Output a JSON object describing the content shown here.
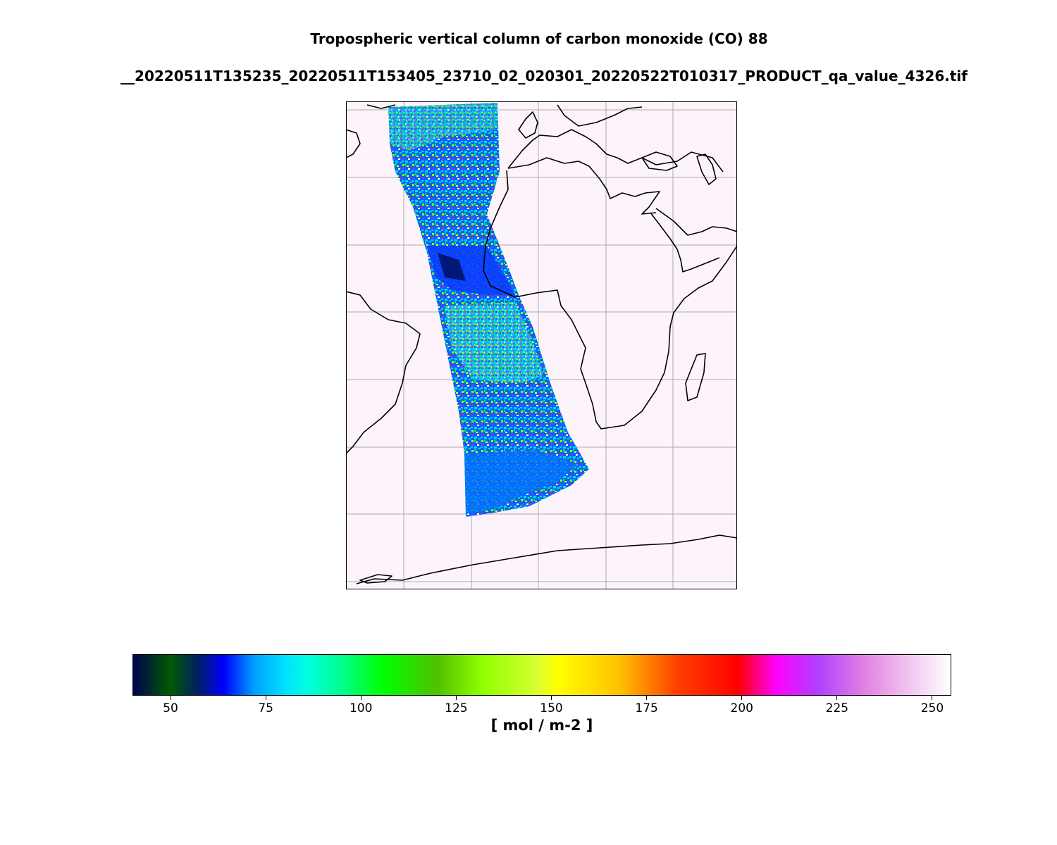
{
  "figure": {
    "title_line_1": "Tropospheric vertical column of carbon monoxide (CO) 88",
    "title_line_2": "__20220511T135235_20220511T153405_23710_02_020301_20220522T010317_PRODUCT_qa_value_4326.tif"
  },
  "map": {
    "background_color": "#fdf4fb",
    "coastline_color": "#000000",
    "gridline_color": "#aaaaaa",
    "swath_colors": [
      "#0050ff",
      "#00c8ff",
      "#00ff80",
      "#90ff00",
      "#ffff00",
      "#ff3000",
      "#ff00ff",
      "#ffffff",
      "#001060"
    ]
  },
  "colorbar": {
    "label": "[ mol / m-2 ]",
    "range": [
      40,
      255
    ],
    "ticks": [
      {
        "value": 50,
        "label": "50"
      },
      {
        "value": 75,
        "label": "75"
      },
      {
        "value": 100,
        "label": "100"
      },
      {
        "value": 125,
        "label": "125"
      },
      {
        "value": 150,
        "label": "150"
      },
      {
        "value": 175,
        "label": "175"
      },
      {
        "value": 200,
        "label": "200"
      },
      {
        "value": 225,
        "label": "225"
      },
      {
        "value": 250,
        "label": "250"
      }
    ],
    "color_stops": [
      {
        "value": 40,
        "color": "#000050"
      },
      {
        "value": 50,
        "color": "#005a00"
      },
      {
        "value": 57,
        "color": "#002060"
      },
      {
        "value": 64,
        "color": "#0000ff"
      },
      {
        "value": 72,
        "color": "#00a0ff"
      },
      {
        "value": 80,
        "color": "#00e0ff"
      },
      {
        "value": 86,
        "color": "#00ffe0"
      },
      {
        "value": 96,
        "color": "#00ff80"
      },
      {
        "value": 106,
        "color": "#00ff00"
      },
      {
        "value": 120,
        "color": "#50c000"
      },
      {
        "value": 132,
        "color": "#90ff00"
      },
      {
        "value": 146,
        "color": "#d8ff30"
      },
      {
        "value": 152,
        "color": "#ffff00"
      },
      {
        "value": 168,
        "color": "#ffc000"
      },
      {
        "value": 183,
        "color": "#ff4000"
      },
      {
        "value": 199,
        "color": "#ff0000"
      },
      {
        "value": 209,
        "color": "#ff00ff"
      },
      {
        "value": 220,
        "color": "#b040ff"
      },
      {
        "value": 232,
        "color": "#e080e0"
      },
      {
        "value": 243,
        "color": "#f0c0f0"
      },
      {
        "value": 255,
        "color": "#ffffff"
      }
    ]
  }
}
